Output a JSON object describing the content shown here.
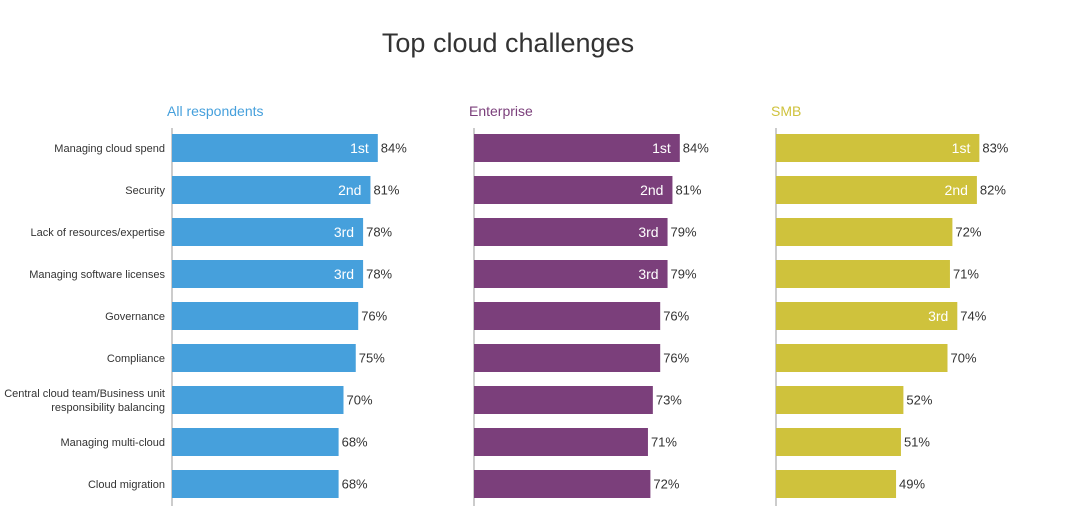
{
  "chart_data": {
    "type": "bar",
    "orientation": "horizontal",
    "title": "Top cloud challenges",
    "categories": [
      "Managing cloud spend",
      "Security",
      "Lack of resources/expertise",
      "Managing software licenses",
      "Governance",
      "Compliance",
      "Central cloud team/Business unit responsibility balancing",
      "Managing multi-cloud",
      "Cloud migration"
    ],
    "category_lines": [
      [
        "Managing cloud spend"
      ],
      [
        "Security"
      ],
      [
        "Lack of resources/expertise"
      ],
      [
        "Managing software licenses"
      ],
      [
        "Governance"
      ],
      [
        "Compliance"
      ],
      [
        "Central cloud team/Business unit",
        "responsibility balancing"
      ],
      [
        "Managing multi-cloud"
      ],
      [
        "Cloud migration"
      ]
    ],
    "value_suffix": "%",
    "xlim": [
      0,
      100
    ],
    "grid": false,
    "series": [
      {
        "name": "All respondents",
        "color": "#46a0dc",
        "values": [
          84,
          81,
          78,
          78,
          76,
          75,
          70,
          68,
          68
        ],
        "ranks": [
          "1st",
          "2nd",
          "3rd",
          "3rd",
          "",
          "",
          "",
          "",
          ""
        ]
      },
      {
        "name": "Enterprise",
        "color": "#7b3f7b",
        "values": [
          84,
          81,
          79,
          79,
          76,
          76,
          73,
          71,
          72
        ],
        "ranks": [
          "1st",
          "2nd",
          "3rd",
          "3rd",
          "",
          "",
          "",
          "",
          ""
        ]
      },
      {
        "name": "SMB",
        "color": "#cfc23c",
        "values": [
          83,
          82,
          72,
          71,
          74,
          70,
          52,
          51,
          49
        ],
        "ranks": [
          "1st",
          "2nd",
          "",
          "",
          "3rd",
          "",
          "",
          "",
          ""
        ]
      }
    ]
  }
}
